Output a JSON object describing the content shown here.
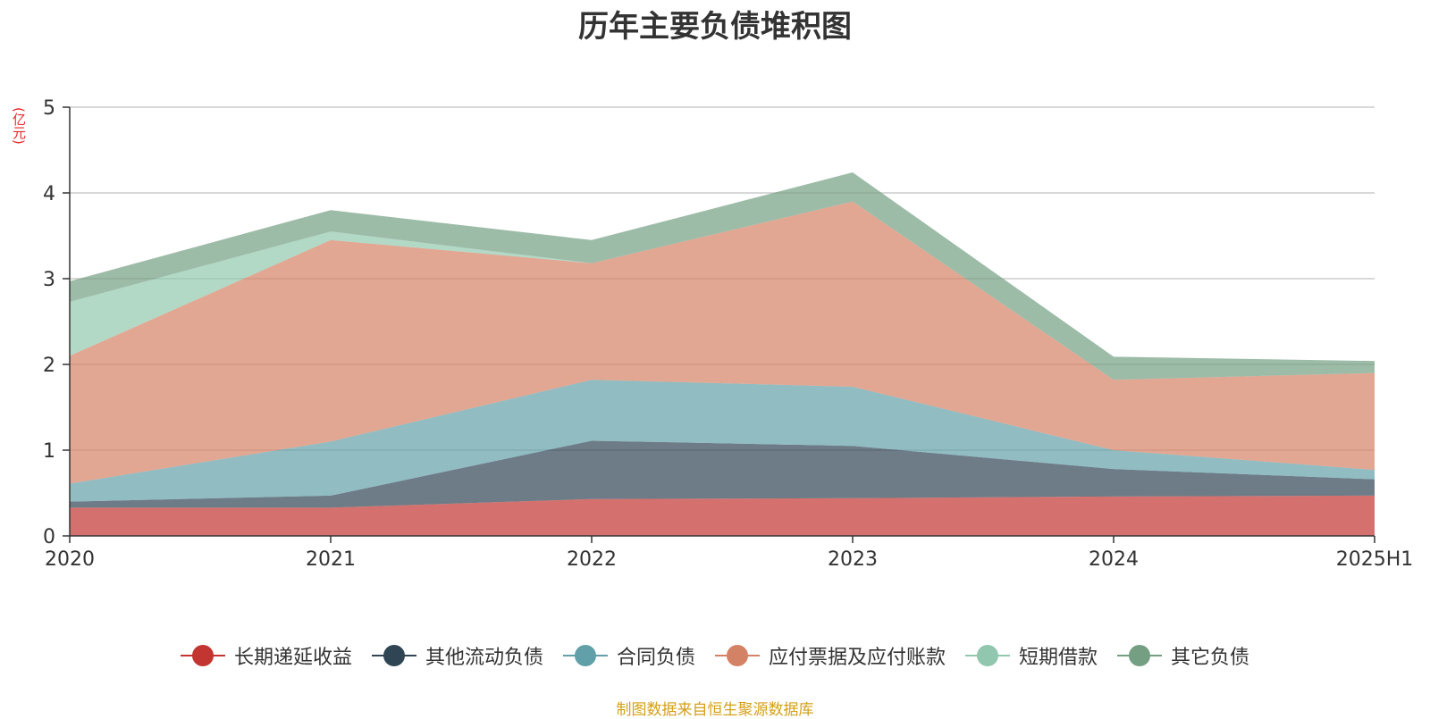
{
  "chart_data": {
    "type": "area",
    "stacked": true,
    "title": "历年主要负债堆积图",
    "unit_label": "(亿元)",
    "categories": [
      "2020",
      "2021",
      "2022",
      "2023",
      "2024",
      "2025H1"
    ],
    "ylim": [
      0,
      5
    ],
    "y_ticks": [
      "0",
      "1",
      "2",
      "3",
      "4",
      "5"
    ],
    "grid": true,
    "legend_position": "bottom",
    "series": [
      {
        "name": "长期递延收益",
        "color": "#c23531",
        "values": [
          0.33,
          0.33,
          0.43,
          0.44,
          0.46,
          0.47
        ]
      },
      {
        "name": "其他流动负债",
        "color": "#2f4554",
        "values": [
          0.07,
          0.14,
          0.68,
          0.61,
          0.32,
          0.19
        ]
      },
      {
        "name": "合同负债",
        "color": "#61a0a8",
        "values": [
          0.21,
          0.63,
          0.71,
          0.69,
          0.22,
          0.11
        ]
      },
      {
        "name": "应付票据及应付账款",
        "color": "#d48265",
        "values": [
          1.49,
          2.35,
          1.36,
          2.16,
          0.82,
          1.13
        ]
      },
      {
        "name": "短期借款",
        "color": "#91c7ae",
        "values": [
          0.63,
          0.1,
          0.0,
          0.0,
          0.0,
          0.0
        ]
      },
      {
        "name": "其它负债",
        "color": "#749f83",
        "values": [
          0.24,
          0.25,
          0.27,
          0.34,
          0.27,
          0.14
        ]
      }
    ]
  },
  "footer": {
    "source_note": "制图数据来自恒生聚源数据库"
  }
}
